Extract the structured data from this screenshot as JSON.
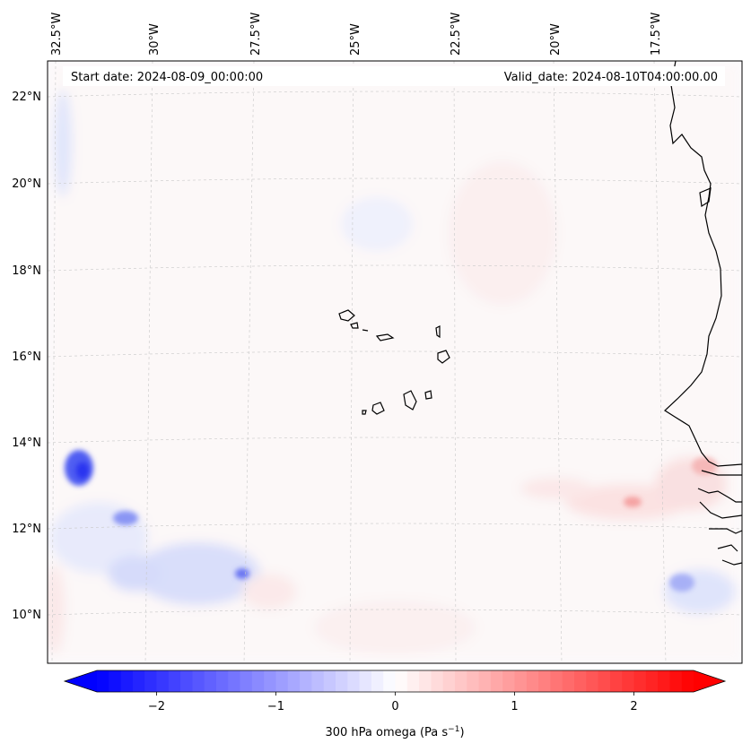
{
  "map": {
    "header": {
      "start_date": "Start date: 2024-08-09_00:00:00",
      "valid_date": "Valid_date: 2024-08-10T04:00:00.00"
    },
    "lon_labels": [
      "32.5°W",
      "30°W",
      "27.5°W",
      "25°W",
      "22.5°W",
      "20°W",
      "17.5°W"
    ],
    "lat_labels": [
      "22°N",
      "20°N",
      "18°N",
      "16°N",
      "14°N",
      "12°N",
      "10°N"
    ],
    "field": "omega",
    "colors": {
      "negative": "#0000ff",
      "zero": "#ffffff",
      "positive": "#ff0000",
      "coast": "#000000"
    }
  },
  "colorbar": {
    "ticks": [
      "−2",
      "−1",
      "0",
      "1",
      "2"
    ],
    "tick_values": [
      -2,
      -1,
      0,
      1,
      2
    ],
    "vmin": -2.5,
    "vmax": 2.5,
    "extend": "both",
    "label_main": "300 hPa omega (Pa s",
    "label_sup": "−1",
    "label_tail": ")"
  }
}
